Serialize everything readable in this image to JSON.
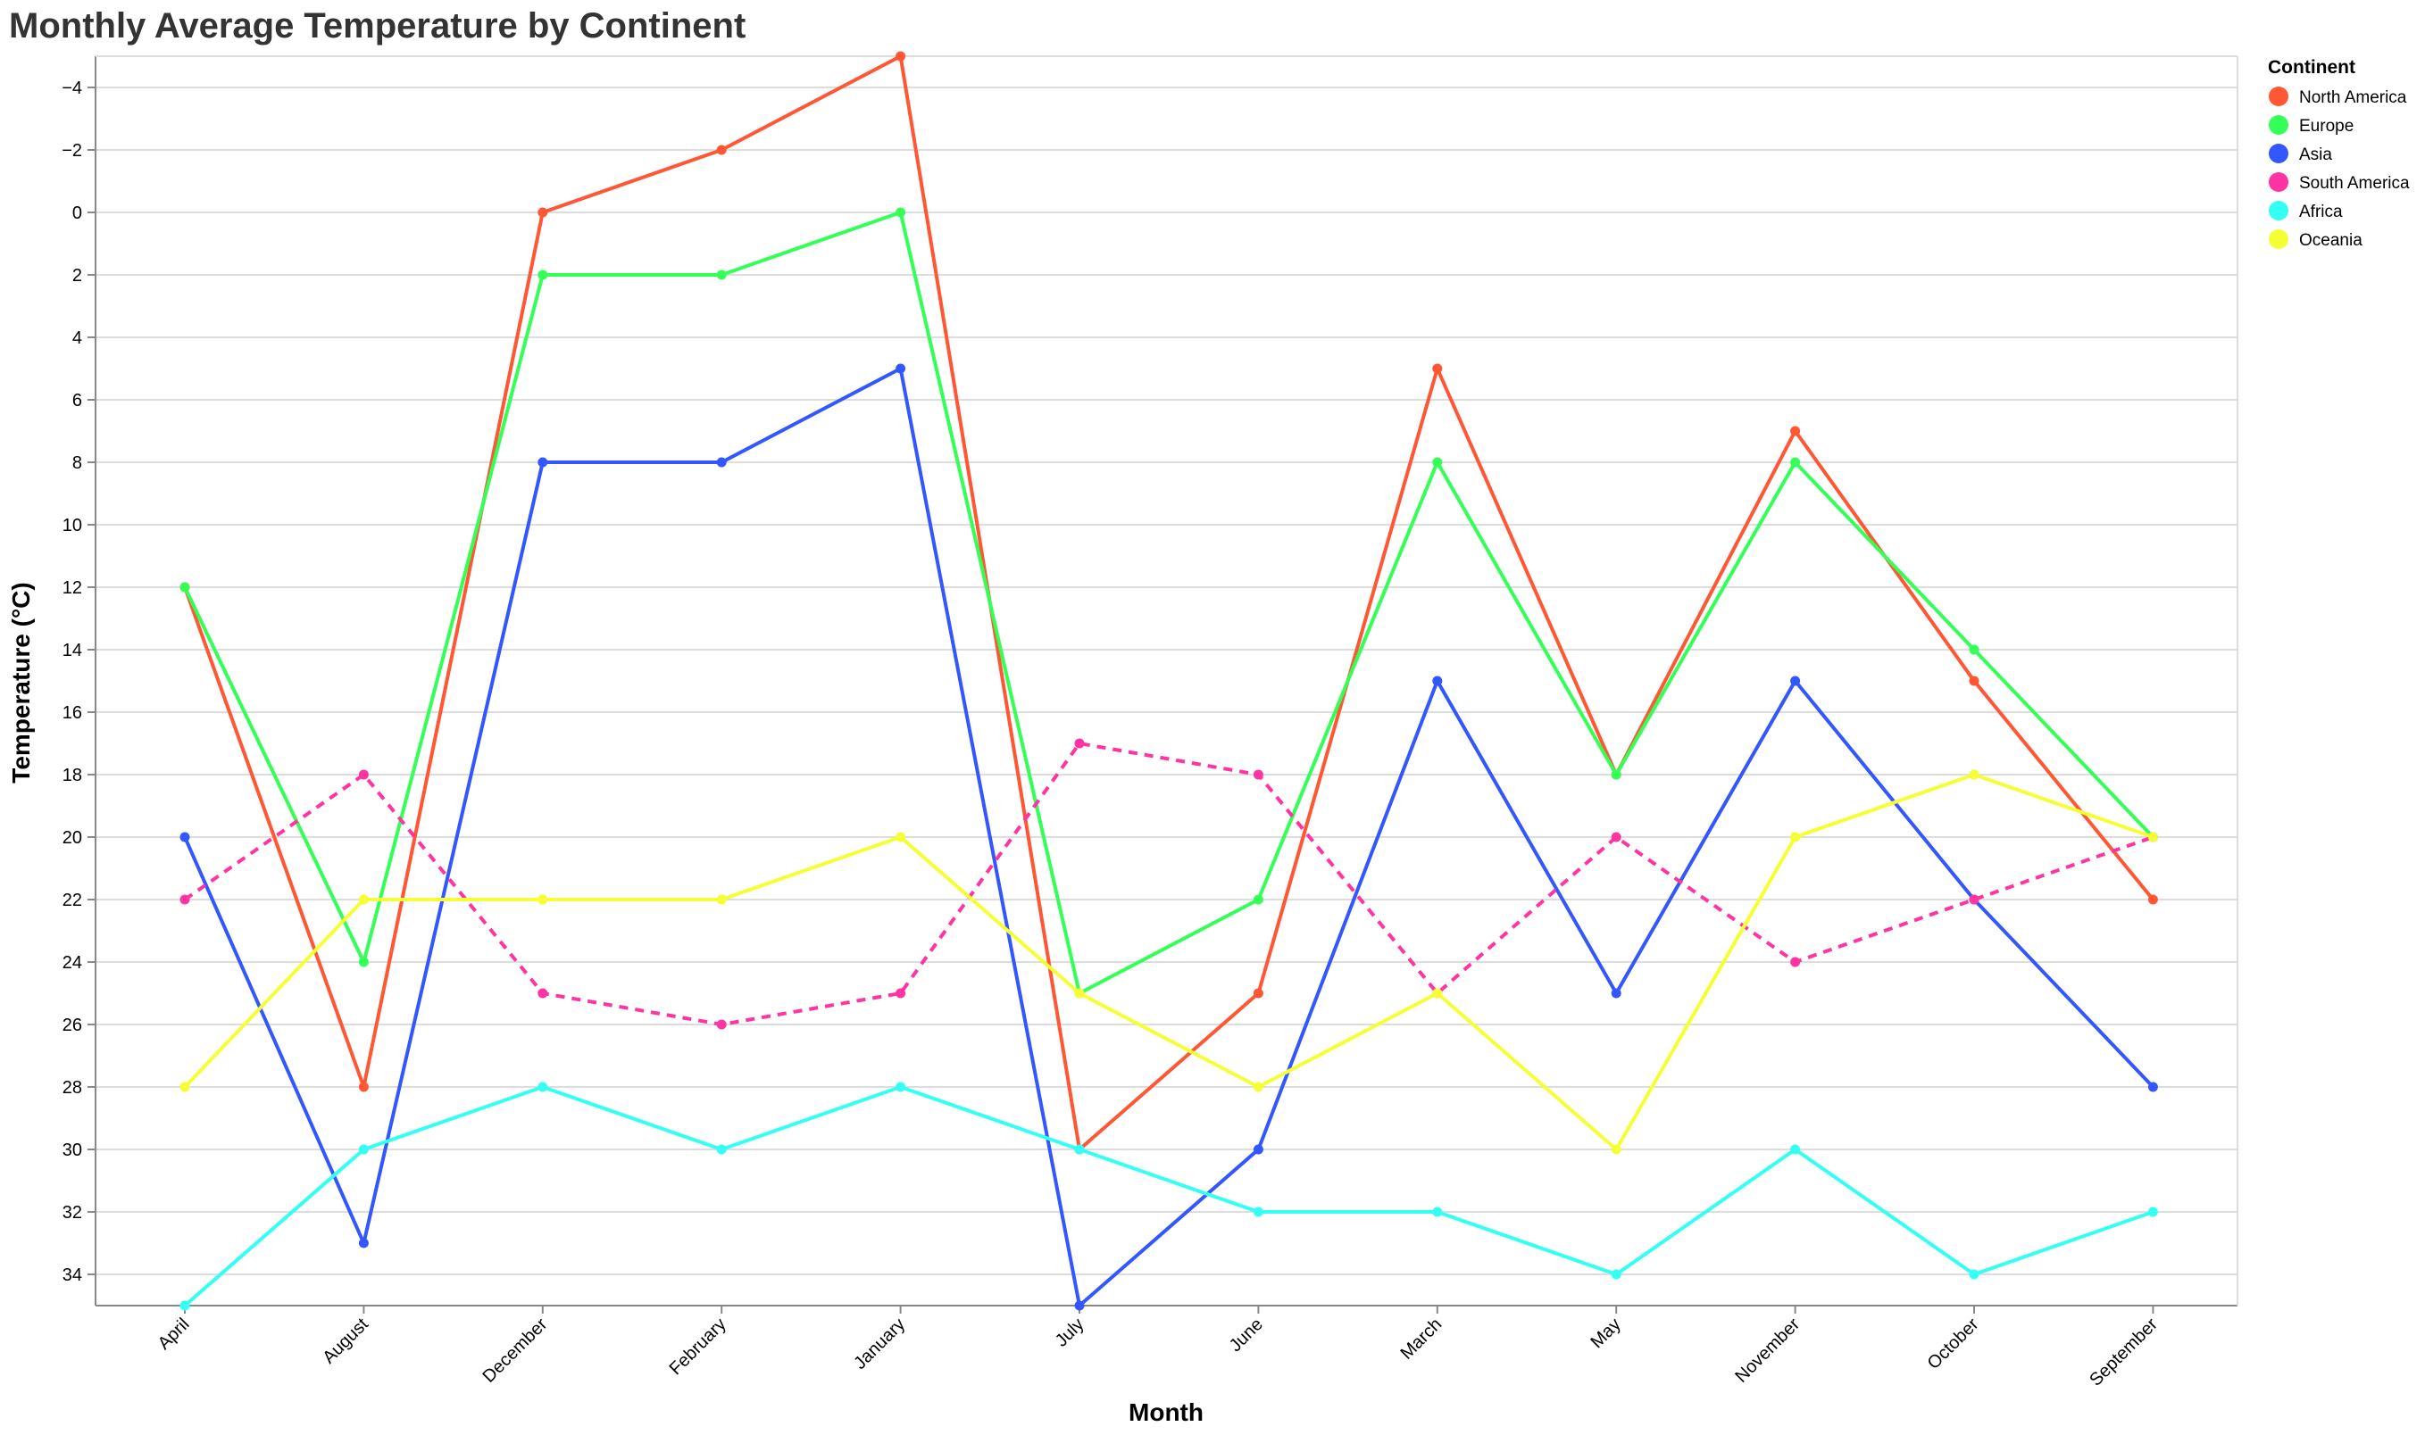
{
  "chart_data": {
    "type": "line",
    "title": "Monthly Average Temperature by Continent",
    "xlabel": "Month",
    "ylabel": "Temperature (°C)",
    "categories": [
      "April",
      "August",
      "December",
      "February",
      "January",
      "July",
      "June",
      "March",
      "May",
      "November",
      "October",
      "September"
    ],
    "yticks": [
      -4,
      -2,
      0,
      2,
      4,
      6,
      8,
      10,
      12,
      14,
      16,
      18,
      20,
      22,
      24,
      26,
      28,
      30,
      32,
      34
    ],
    "ylim": [
      -5,
      35
    ],
    "y_reversed": true,
    "grid": true,
    "legend_title": "Continent",
    "legend_position": "top-right",
    "series": [
      {
        "name": "North America",
        "color": "#ff5733",
        "dashed": false,
        "values": [
          12,
          28,
          0,
          -2,
          -5,
          30,
          25,
          5,
          18,
          7,
          15,
          22
        ]
      },
      {
        "name": "Europe",
        "color": "#33ff57",
        "dashed": false,
        "values": [
          12,
          24,
          2,
          2,
          0,
          25,
          22,
          8,
          18,
          8,
          14,
          20
        ]
      },
      {
        "name": "Asia",
        "color": "#3357ff",
        "dashed": false,
        "values": [
          20,
          33,
          8,
          8,
          5,
          35,
          30,
          15,
          25,
          15,
          22,
          28
        ]
      },
      {
        "name": "South America",
        "color": "#ff33a1",
        "dashed": true,
        "values": [
          22,
          18,
          25,
          26,
          25,
          17,
          18,
          25,
          20,
          24,
          22,
          20
        ]
      },
      {
        "name": "Africa",
        "color": "#33fff5",
        "dashed": false,
        "values": [
          35,
          30,
          28,
          30,
          28,
          30,
          32,
          32,
          34,
          30,
          34,
          32
        ]
      },
      {
        "name": "Oceania",
        "color": "#f5ff33",
        "dashed": false,
        "values": [
          28,
          22,
          22,
          22,
          20,
          25,
          28,
          25,
          30,
          20,
          18,
          20
        ]
      }
    ]
  }
}
